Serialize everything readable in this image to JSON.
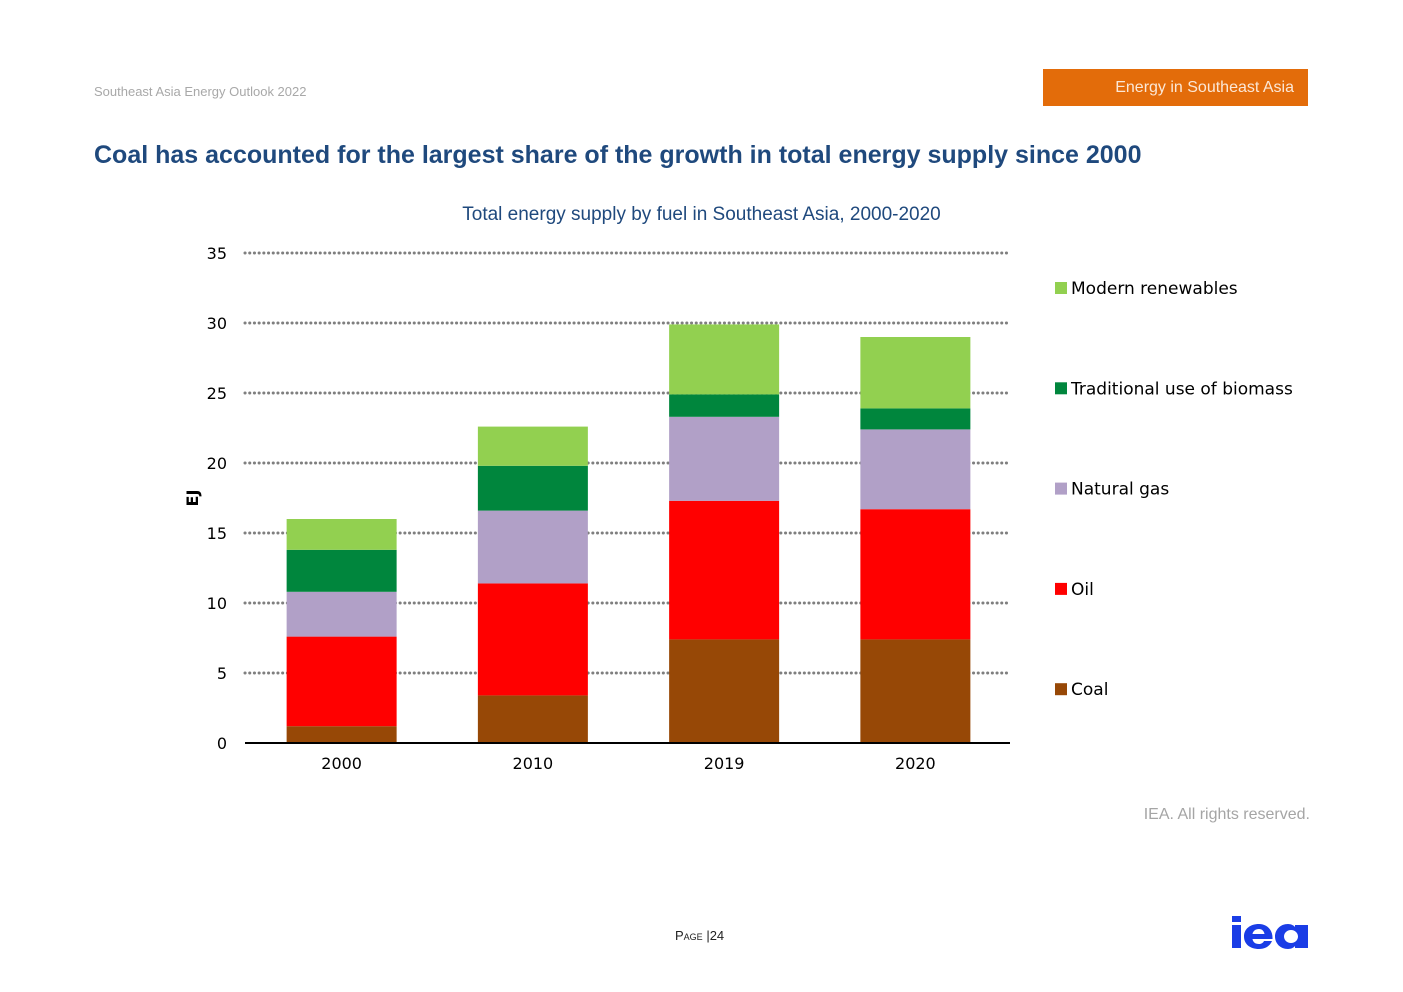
{
  "header": {
    "report_name": "Southeast Asia Energy Outlook 2022",
    "section_tag": "Energy in Southeast Asia",
    "section_tag_color": "#e36c0a"
  },
  "headline": "Coal has accounted for the largest share of the growth in total energy supply since 2000",
  "footer": {
    "rights": "IEA. All rights reserved.",
    "page_label": "Page",
    "page_separator": "|",
    "page_number": "24",
    "logo_icon": "iea-logo",
    "logo_color": "#1a3de6"
  },
  "chart_data": {
    "type": "bar",
    "stacked": true,
    "title": "Total energy supply by fuel in Southeast Asia, 2000-2020",
    "xlabel": "",
    "ylabel": "EJ",
    "ylim": [
      0,
      35
    ],
    "yticks": [
      0,
      5,
      10,
      15,
      20,
      25,
      30,
      35
    ],
    "grid": "dotted horizontal",
    "legend_position": "right",
    "categories": [
      "2000",
      "2010",
      "2019",
      "2020"
    ],
    "series": [
      {
        "name": "Coal",
        "color": "#974806",
        "values": [
          1.2,
          3.4,
          7.4,
          7.4
        ]
      },
      {
        "name": "Oil",
        "color": "#ff0000",
        "values": [
          6.4,
          8.0,
          9.9,
          9.3
        ]
      },
      {
        "name": "Natural gas",
        "color": "#b1a0c7",
        "values": [
          3.2,
          5.2,
          6.0,
          5.7
        ]
      },
      {
        "name": "Traditional use of biomass",
        "color": "#00863d",
        "values": [
          3.0,
          3.2,
          1.6,
          1.5
        ]
      },
      {
        "name": "Modern renewables",
        "color": "#92d050",
        "values": [
          2.2,
          2.8,
          5.0,
          5.1
        ]
      }
    ],
    "legend_order": [
      "Modern renewables",
      "Traditional use of biomass",
      "Natural gas",
      "Oil",
      "Coal"
    ]
  }
}
